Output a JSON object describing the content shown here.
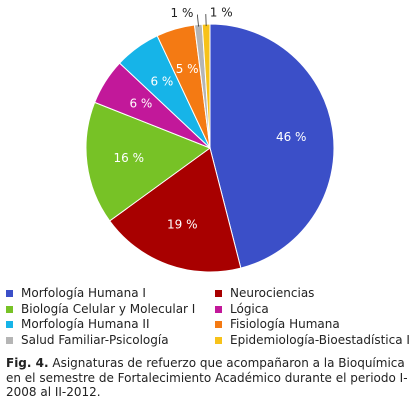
{
  "chart_data": {
    "type": "pie",
    "slices": [
      {
        "label": "Morfología Humana I",
        "value": 46,
        "data_label": "46 %",
        "color": "#3b4fc8"
      },
      {
        "label": "Neurociencias",
        "value": 19,
        "data_label": "19 %",
        "color": "#a80000"
      },
      {
        "label": "Biología Celular y Molecular I",
        "value": 16,
        "data_label": "16 %",
        "color": "#77c226"
      },
      {
        "label": "Lógica",
        "value": 6,
        "data_label": "6 %",
        "color": "#c2189a"
      },
      {
        "label": "Morfología Humana II",
        "value": 6,
        "data_label": "6 %",
        "color": "#16b4e8"
      },
      {
        "label": "Fisiología Humana",
        "value": 5,
        "data_label": "5 %",
        "color": "#f47a13"
      },
      {
        "label": "Salud Familiar-Psicología",
        "value": 1,
        "data_label": "1 %",
        "color": "#b5b5b5"
      },
      {
        "label": "Epidemiología-Bioestadística I",
        "value": 1,
        "data_label": "1 %",
        "color": "#f7c21a"
      }
    ],
    "legend_position": "bottom",
    "data_label_text_color": "#ffffff"
  },
  "caption": {
    "label": "Fig. 4.",
    "text": " Asignaturas de refuerzo que acompañaron a la Bioquímica en el semestre de Fortalecimiento Académico durante el periodo I-2008 al II-2012."
  }
}
